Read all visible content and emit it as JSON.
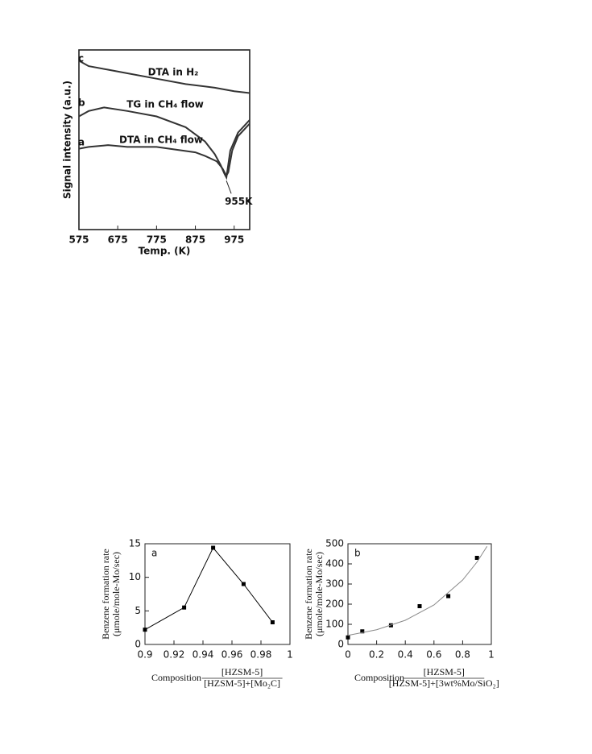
{
  "chart_data": [
    {
      "type": "line",
      "xlabel": "Temp. (K)",
      "ylabel": "Signal intensity (a.u.)",
      "xlim": [
        575,
        1015
      ],
      "ylim": [
        0,
        100
      ],
      "xticks": [
        575,
        675,
        775,
        875,
        975
      ],
      "series": [
        {
          "name": "DTA in H₂",
          "curve_label": "c",
          "color": "#333",
          "x": [
            575,
            600,
            650,
            700,
            775,
            850,
            925,
            975,
            1015
          ],
          "values": [
            94,
            91,
            89,
            87,
            84,
            81,
            79,
            77,
            76
          ]
        },
        {
          "name": "TG in CH₄ flow",
          "curve_label": "b",
          "color": "#333",
          "x": [
            575,
            600,
            640,
            700,
            775,
            850,
            900,
            925,
            940,
            950,
            955,
            965,
            985,
            1015
          ],
          "values": [
            63,
            66,
            68,
            66,
            63,
            57,
            49,
            42,
            36,
            31,
            29,
            44,
            54,
            61
          ]
        },
        {
          "name": "DTA in CH₄ flow",
          "curve_label": "a",
          "color": "#333",
          "x": [
            575,
            600,
            650,
            700,
            775,
            875,
            900,
            930,
            945,
            955,
            960,
            970,
            985,
            1015
          ],
          "values": [
            45,
            46,
            47,
            46,
            46,
            43,
            41,
            38,
            34,
            30,
            32,
            44,
            52,
            59
          ]
        }
      ],
      "annotation": {
        "text": "955K",
        "x": 955,
        "y": 29
      }
    },
    {
      "type": "scatter",
      "panel_label": "a",
      "xlabel": "Composition",
      "x_fraction": {
        "numerator": "[HZSM-5]",
        "denominator": "[HZSM-5]+[Mo₂C]"
      },
      "ylabel": [
        "Benzene formation rate",
        "(μmole/mole-Mo/sec)"
      ],
      "xlim": [
        0.9,
        1
      ],
      "ylim": [
        0,
        15
      ],
      "xticks": [
        0.9,
        0.92,
        0.94,
        0.96,
        0.98,
        1
      ],
      "yticks": [
        0,
        5,
        10,
        15
      ],
      "series": [
        {
          "color": "#000",
          "line": true,
          "marker": true,
          "x": [
            0.9,
            0.927,
            0.947,
            0.968,
            0.988
          ],
          "values": [
            2.2,
            5.5,
            14.4,
            9,
            3.3
          ]
        }
      ]
    },
    {
      "type": "scatter",
      "panel_label": "b",
      "xlabel": "Composition",
      "x_fraction": {
        "numerator": "[HZSM-5]",
        "denominator": "[HZSM-5]+[3wt%Mo/SiO₂]"
      },
      "ylabel": [
        "Benzene formation rate",
        "(μmole/mole-Mo/sec)"
      ],
      "xlim": [
        0,
        1
      ],
      "ylim": [
        0,
        500
      ],
      "xticks": [
        0,
        0.2,
        0.4,
        0.6,
        0.8,
        1
      ],
      "yticks": [
        0,
        100,
        200,
        300,
        400,
        500
      ],
      "series": [
        {
          "color": "#000",
          "line": false,
          "marker": true,
          "x": [
            0,
            0.1,
            0.3,
            0.5,
            0.7,
            0.9
          ],
          "values": [
            35,
            65,
            95,
            190,
            240,
            430
          ]
        },
        {
          "color": "#888",
          "line": true,
          "marker": false,
          "x": [
            0,
            0.2,
            0.4,
            0.6,
            0.8,
            0.9,
            0.97
          ],
          "values": [
            45,
            73,
            120,
            196,
            320,
            409,
            487
          ]
        }
      ]
    }
  ]
}
